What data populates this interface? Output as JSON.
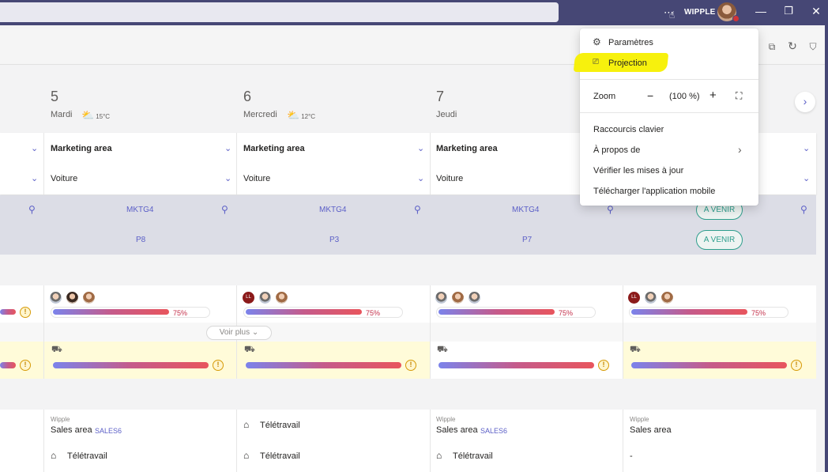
{
  "titlebar": {
    "org_name": "WIPPLE"
  },
  "days": [
    {
      "num": "5",
      "name": "Mardi",
      "temp": "15°C"
    },
    {
      "num": "6",
      "name": "Mercredi",
      "temp": "12°C"
    },
    {
      "num": "7",
      "name": "Jeudi"
    }
  ],
  "selectors": {
    "area_label": "Marketing area",
    "transport_label": "Voiture"
  },
  "locations": {
    "row1": [
      "MKTG4",
      "MKTG4",
      "MKTG4"
    ],
    "row2": [
      "P8",
      "P3",
      "P7"
    ],
    "status_pill": "A VENIR"
  },
  "presence": {
    "percent": "75%",
    "percent_value": 0.75,
    "voir_plus": "Voir plus",
    "initials": "LL"
  },
  "bottom": {
    "company": "Wipple",
    "sales_area": "Sales area",
    "sales_tag": "SALES6",
    "teletravail": "Télétravail",
    "dash": "-"
  },
  "menu": {
    "parametres": "Paramètres",
    "projection": "Projection",
    "zoom_label": "Zoom",
    "zoom_value": "(100 %)",
    "raccourcis": "Raccourcis clavier",
    "a_propos": "À propos de",
    "verifier": "Vérifier les mises à jour",
    "telecharger": "Télécharger l'application mobile"
  },
  "colors": {
    "titlebar": "#464775",
    "accent": "#5b5fc7",
    "warning": "#d69a06",
    "status_pill": "#2e9e8d"
  }
}
